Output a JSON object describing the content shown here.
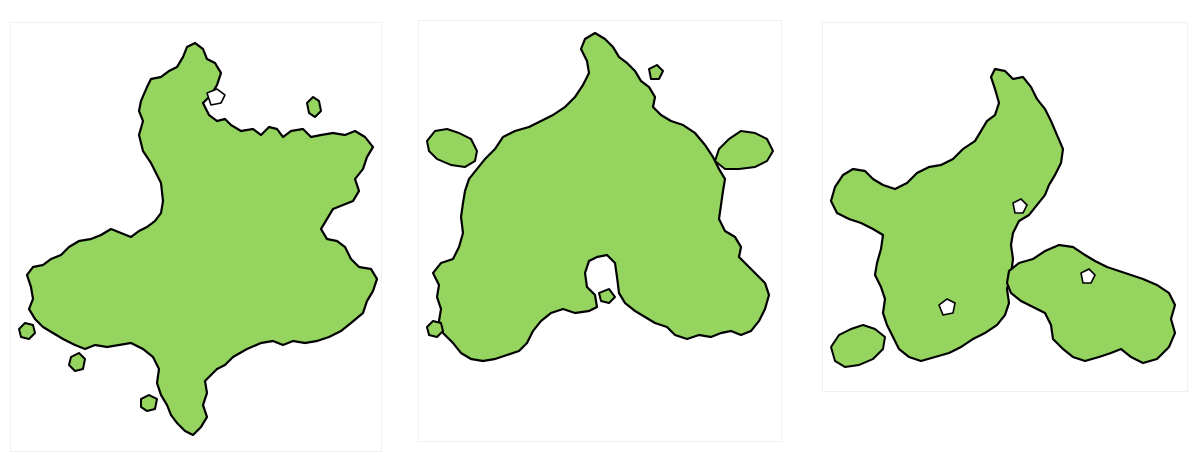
{
  "figure": {
    "fill_color": "#95d45f",
    "outline_color": "#000000",
    "background_color": "#ffffff",
    "panels": [
      {
        "name": "fractal-tile-left"
      },
      {
        "name": "fractal-tile-middle"
      },
      {
        "name": "fractal-tile-right"
      }
    ]
  }
}
